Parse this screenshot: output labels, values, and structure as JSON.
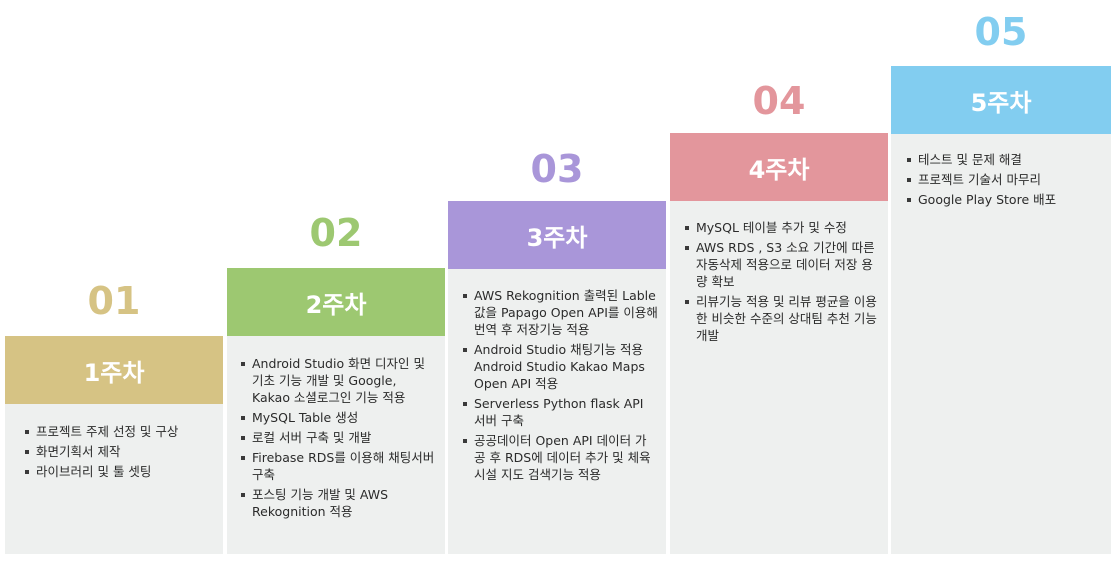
{
  "steps": [
    {
      "num": "01",
      "week": "1주차",
      "color": "#d6c384",
      "items": [
        "프로젝트 주제 선정 및 구상",
        "화면기획서 제작",
        "라이브러리 및 툴 셋팅"
      ]
    },
    {
      "num": "02",
      "week": "2주차",
      "color": "#9dc871",
      "items": [
        "Android Studio 화면 디자인 및 기초 기능 개발 및  Google, Kakao 소셜로그인 기능 적용",
        " MySQL Table 생성",
        "로컬 서버 구축 및 개발",
        "Firebase RDS를 이용해 채팅서버 구축",
        "포스팅 기능 개발 및 AWS Rekognition 적용"
      ]
    },
    {
      "num": "03",
      "week": "3주차",
      "color": "#a996d9",
      "items": [
        "AWS Rekognition 출력된 Lable 값을 Papago Open API를 이용해 번역 후 저장기능 적용",
        "Android Studio 채팅기능 적용 Android Studio Kakao Maps Open API 적용",
        "Serverless Python flask API 서버 구축",
        "공공데이터 Open API 데이터 가공 후 RDS에 데이터 추가 및 체육시설 지도 검색기능 적용"
      ]
    },
    {
      "num": "04",
      "week": "4주차",
      "color": "#e3969c",
      "items": [
        "MySQL 테이블 추가 및 수정",
        "AWS RDS , S3 소요 기간에 따른 자동삭제 적용으로 데이터 저장 용량 확보",
        "리뷰기능 적용 및 리뷰 평균을 이용한 비슷한 수준의 상대팀 추천 기능 개발"
      ]
    },
    {
      "num": "05",
      "week": "5주차",
      "color": "#82cdf0",
      "items": [
        "테스트 및 문제 해결",
        "프로젝트 기술서 마무리",
        "Google Play Store 배포"
      ]
    }
  ]
}
